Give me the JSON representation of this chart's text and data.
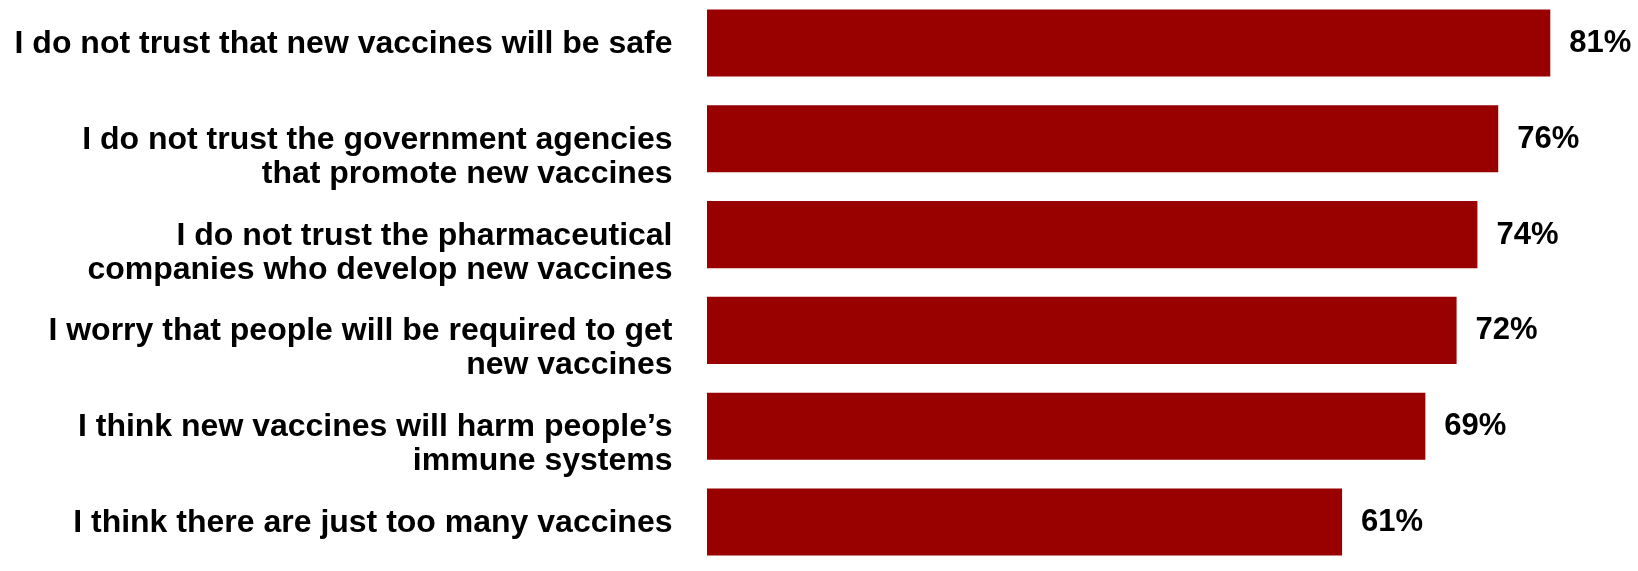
{
  "chart_data": {
    "type": "bar",
    "orientation": "horizontal",
    "categories": [
      "I do not trust that new vaccines will be safe",
      "I do not trust the government agencies\nthat promote new vaccines",
      "I do not trust the pharmaceutical\ncompanies who develop new vaccines",
      "I worry that people will be required to get\nnew vaccines",
      "I think new vaccines will harm people’s\nimmune systems",
      "I think there are just too many vaccines"
    ],
    "values": [
      81,
      76,
      74,
      72,
      69,
      61
    ],
    "value_labels": [
      "81%",
      "76%",
      "74%",
      "72%",
      "69%",
      "61%"
    ],
    "color": "#990000"
  }
}
